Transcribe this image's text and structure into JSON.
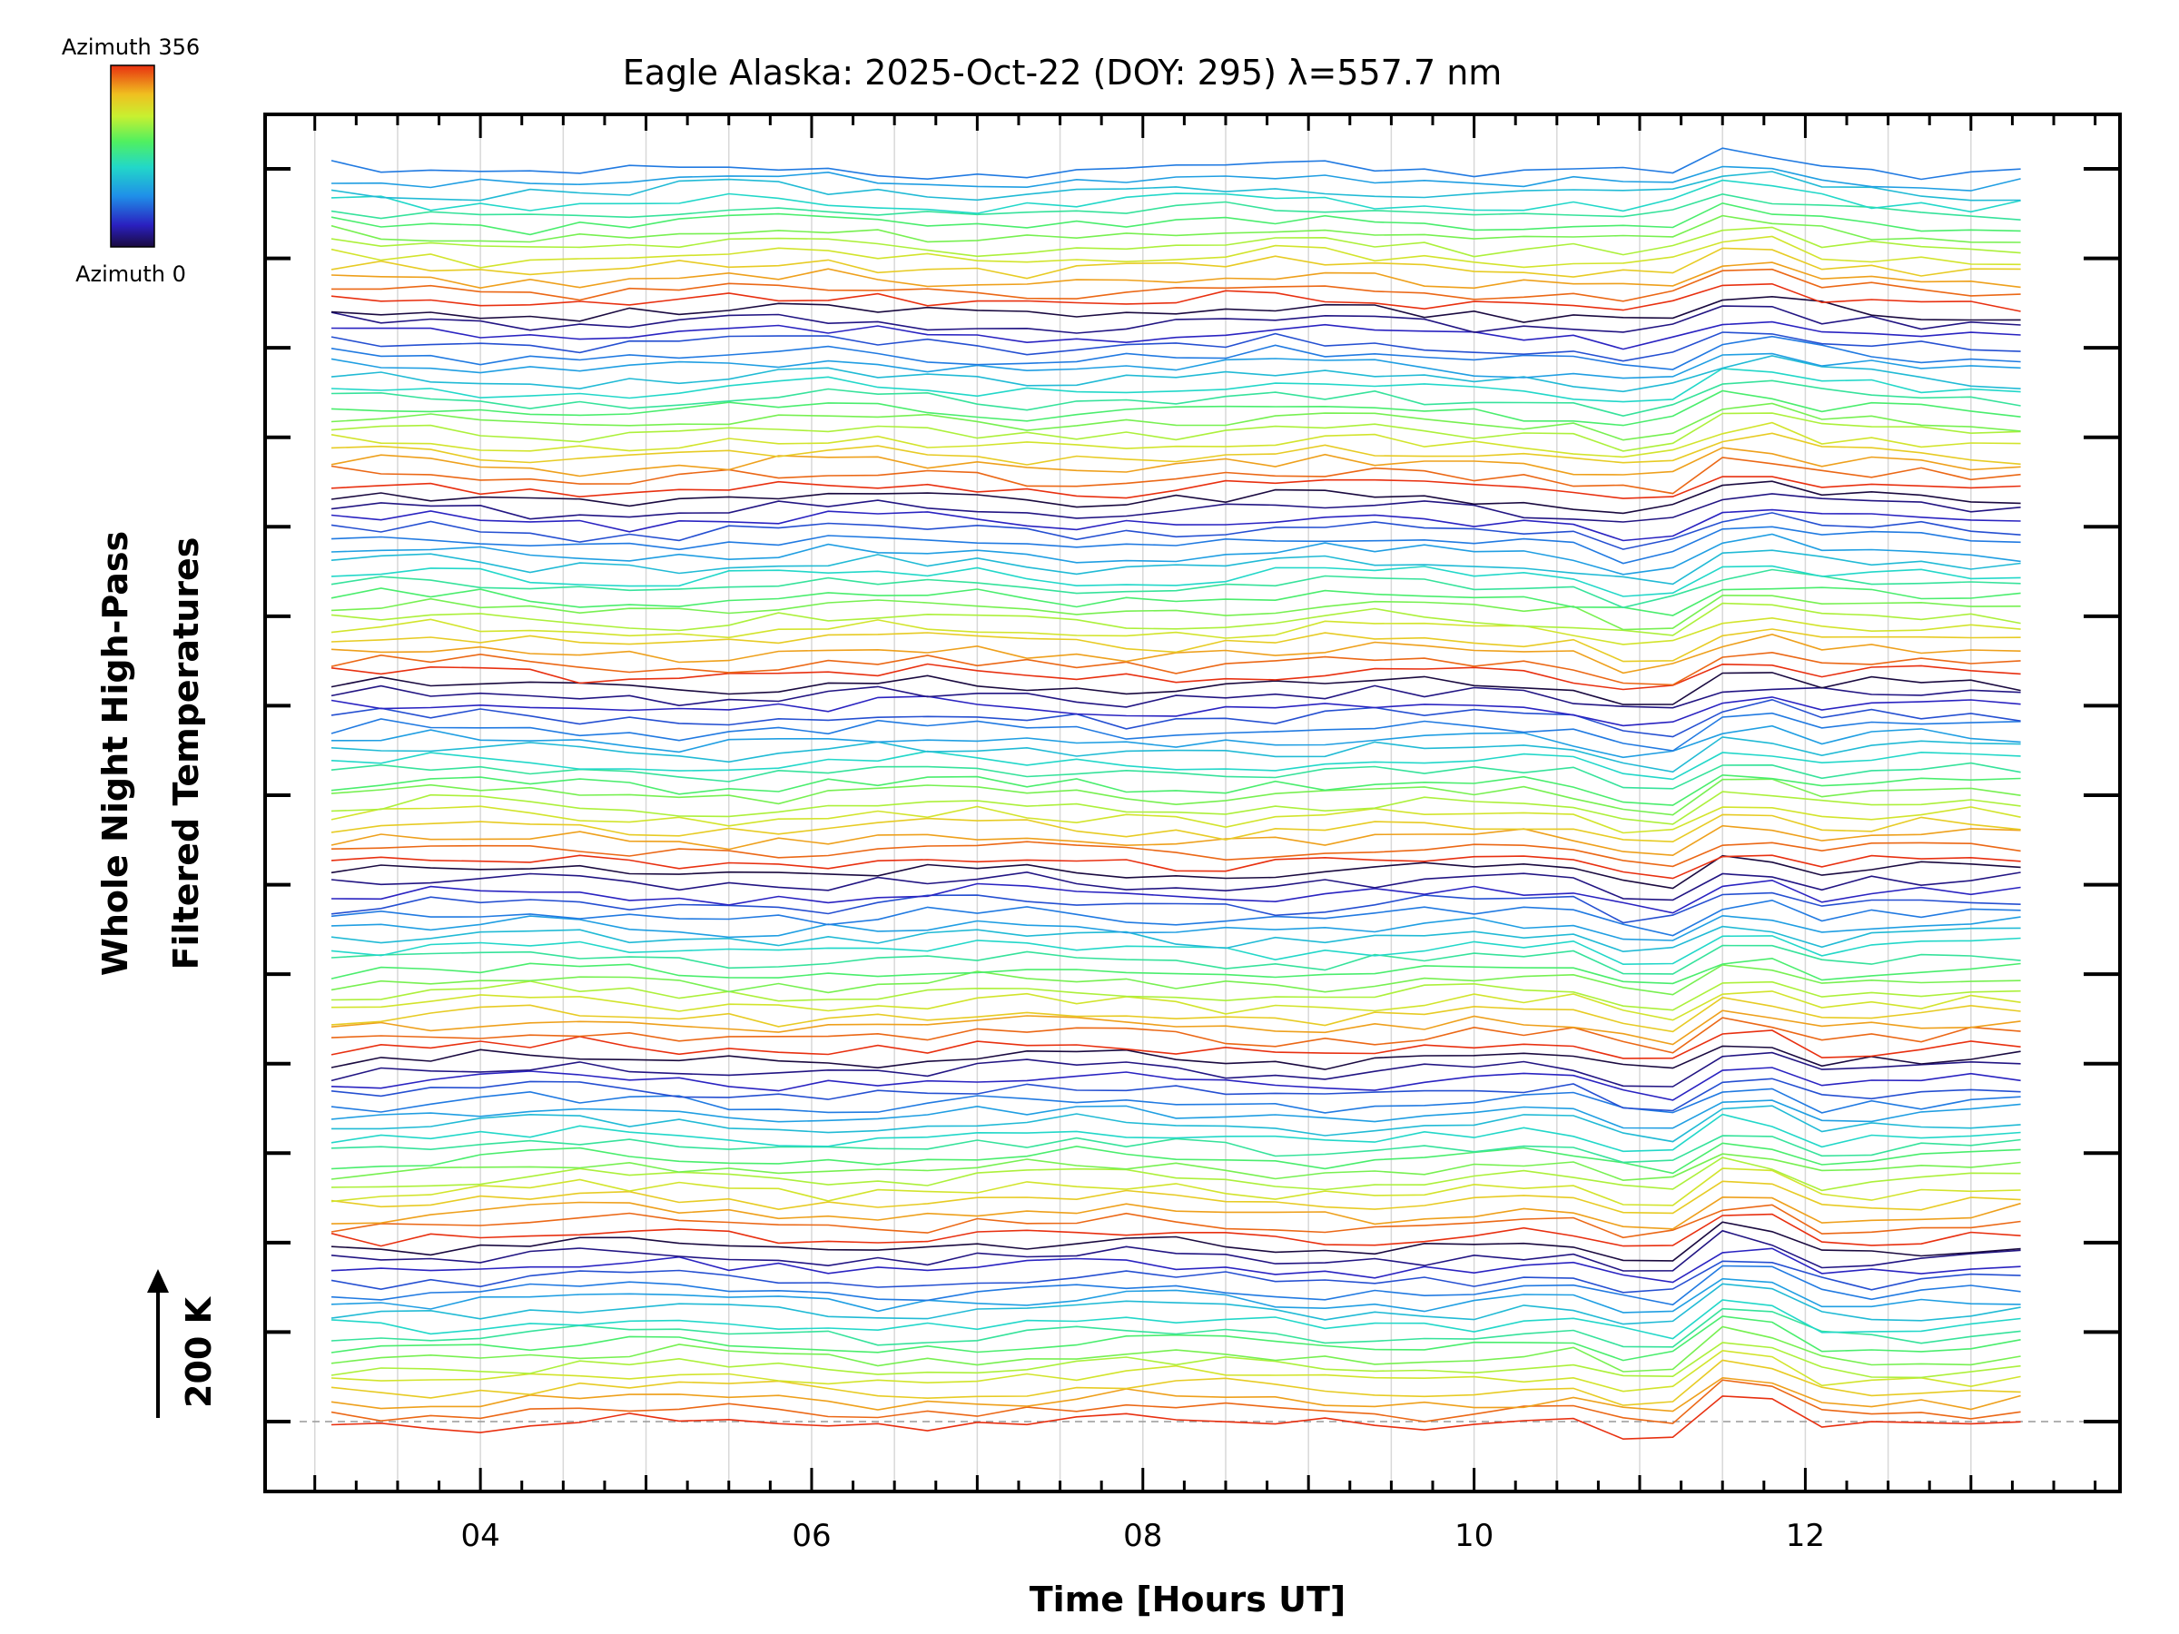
{
  "chart_data": {
    "type": "line",
    "title": "Eagle Alaska: 2025-Oct-22 (DOY: 295) λ=557.7 nm",
    "xlabel": "Time [Hours UT]",
    "ylabel_line1": "Whole Night High-Pass",
    "ylabel_line2": "Filtered Temperatures",
    "xlim": [
      2.7,
      13.9
    ],
    "x_ticks": [
      4,
      6,
      8,
      10,
      12
    ],
    "x_tick_labels": [
      "04",
      "06",
      "08",
      "10",
      "12"
    ],
    "x_minor_step": 0.25,
    "x_gridlines": [
      3,
      3.5,
      4,
      4.5,
      5,
      5.5,
      6,
      6.5,
      7,
      7.5,
      8,
      8.5,
      9,
      9.5,
      10,
      10.5,
      11,
      11.5,
      12,
      12.5,
      13
    ],
    "time_range": [
      3.1,
      13.4
    ],
    "sample_step": 0.3,
    "stack_levels": 115,
    "stack_offset_K": 23.6,
    "baseline_level": 0,
    "scale_bar": {
      "label": "200 K",
      "value_K": 200
    },
    "y_ticks_right_count": 15,
    "colorbar": {
      "top_label": "Azimuth  356",
      "bottom_label": "Azimuth  0",
      "azimuth_range": [
        0,
        356
      ],
      "colormap": "rainbow"
    },
    "series_description": "Stacked high-pass filtered temperature time series, one trace per azimuth bin, colored by azimuth"
  }
}
